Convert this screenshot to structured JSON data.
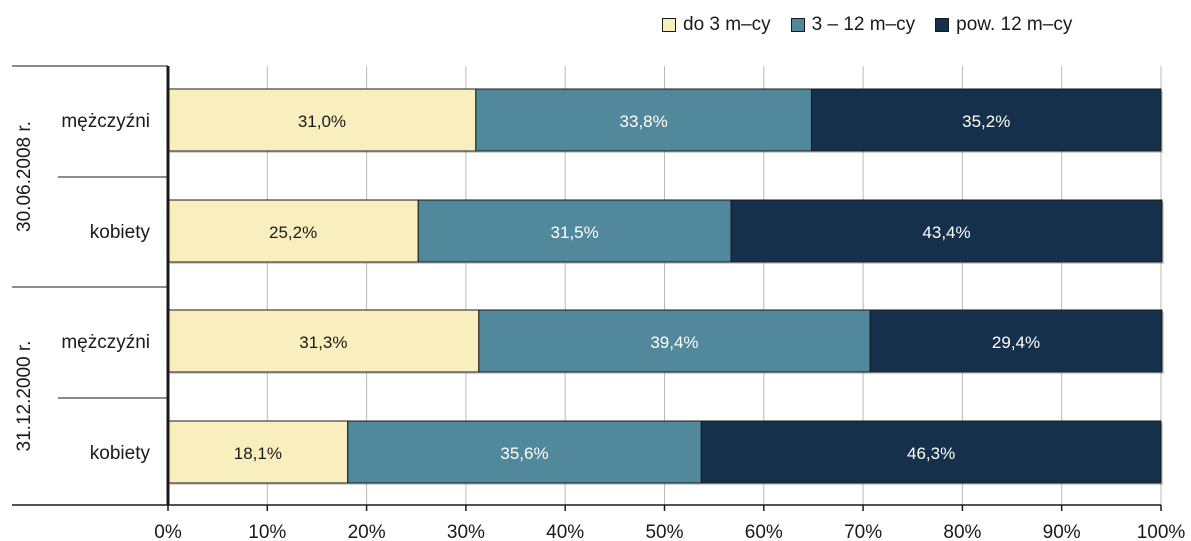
{
  "chart_data": {
    "type": "bar",
    "orientation": "horizontal",
    "stacked": true,
    "title": "",
    "xlabel": "",
    "ylabel": "",
    "xlim": [
      0,
      100
    ],
    "x_ticks": [
      "0%",
      "10%",
      "20%",
      "30%",
      "40%",
      "50%",
      "60%",
      "70%",
      "80%",
      "90%",
      "100%"
    ],
    "grid": true,
    "legend_position": "top-right",
    "groups": [
      {
        "label": "30.06.2008 r.",
        "categories": [
          "mężczyźni",
          "kobiety"
        ]
      },
      {
        "label": "31.12.2000 r.",
        "categories": [
          "mężczyźni",
          "kobiety"
        ]
      }
    ],
    "series": [
      {
        "name": "do 3 m–cy",
        "color": "#f9efbe",
        "label_color": "#1a1a1a",
        "values": [
          31.0,
          25.2,
          31.3,
          18.1
        ],
        "labels": [
          "31,0%",
          "25,2%",
          "31,3%",
          "18,1%"
        ]
      },
      {
        "name": "3 – 12 m–cy",
        "color": "#52889b",
        "label_color": "#ffffff",
        "values": [
          33.8,
          31.5,
          39.4,
          35.6
        ],
        "labels": [
          "33,8%",
          "31,5%",
          "39,4%",
          "35,6%"
        ]
      },
      {
        "name": "pow. 12 m–cy",
        "color": "#14304a",
        "label_color": "#ffffff",
        "values": [
          35.2,
          43.4,
          29.4,
          46.3
        ],
        "labels": [
          "35,2%",
          "43,4%",
          "29,4%",
          "46,3%"
        ]
      }
    ]
  }
}
